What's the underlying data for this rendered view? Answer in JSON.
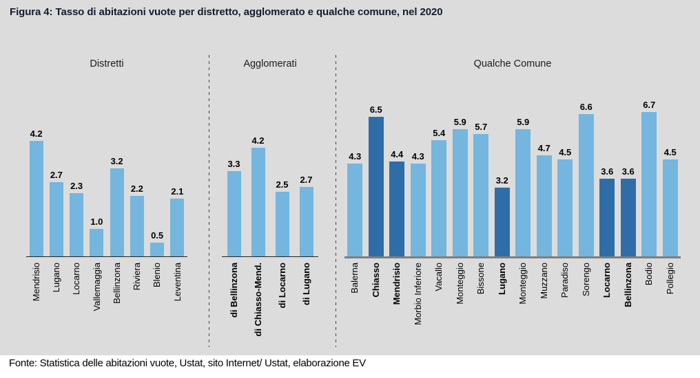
{
  "title": "Figura 4: Tasso di abitazioni vuote per distretto, agglomerato e qualche comune, nel 2020",
  "footer": "Fonte: Statistica delle abitazioni vuote, Ustat, sito Internet/ Ustat, elaborazione EV",
  "colors": {
    "panel_background": "#dcdcdc",
    "bar_light_blue": "#74b6de",
    "bar_dark_blue": "#2e6da8",
    "title_text": "#141b2c"
  },
  "chart_data": [
    {
      "type": "bar",
      "title": "Distretti",
      "categories": [
        "Mendrisio",
        "Lugano",
        "Locarno",
        "Vallemaggia",
        "Bellinzona",
        "Riviera",
        "Blenio",
        "Leventina"
      ],
      "values": [
        4.2,
        2.7,
        2.3,
        1.0,
        3.2,
        2.2,
        0.5,
        2.1
      ],
      "dark_indices": [],
      "bold_label_indices": [],
      "xlabel": "",
      "ylabel": "",
      "ylim": [
        0,
        5
      ],
      "grid": false,
      "value_labels": true
    },
    {
      "type": "bar",
      "title": "Agglomerati",
      "categories": [
        "di Bellinzona",
        "di Chiasso-Mend.",
        "di Locarno",
        "di Lugano"
      ],
      "values": [
        3.3,
        4.2,
        2.5,
        2.7
      ],
      "dark_indices": [],
      "bold_label_indices": [
        0,
        1,
        2,
        3
      ],
      "xlabel": "",
      "ylabel": "",
      "ylim": [
        0,
        5
      ],
      "grid": false,
      "value_labels": true
    },
    {
      "type": "bar",
      "title": "Qualche Comune",
      "categories": [
        "Balerna",
        "Chiasso",
        "Mendrisio",
        "Morbio Inferiore",
        "Vacallo",
        "Monteggio",
        "Bissone",
        "Lugano",
        "Monteggio",
        "Muzzano",
        "Paradiso",
        "Sorengo",
        "Locarno",
        "Bellinzona",
        "Bodio",
        "Pollegio"
      ],
      "values": [
        4.3,
        6.5,
        4.4,
        4.3,
        5.4,
        5.9,
        5.7,
        3.2,
        5.9,
        4.7,
        4.5,
        6.6,
        3.6,
        3.6,
        6.7,
        4.5
      ],
      "dark_indices": [
        1,
        2,
        7,
        12,
        13
      ],
      "bold_label_indices": [
        1,
        2,
        7,
        12,
        13
      ],
      "xlabel": "",
      "ylabel": "",
      "ylim": [
        0,
        7
      ],
      "grid": false,
      "value_labels": true
    }
  ]
}
